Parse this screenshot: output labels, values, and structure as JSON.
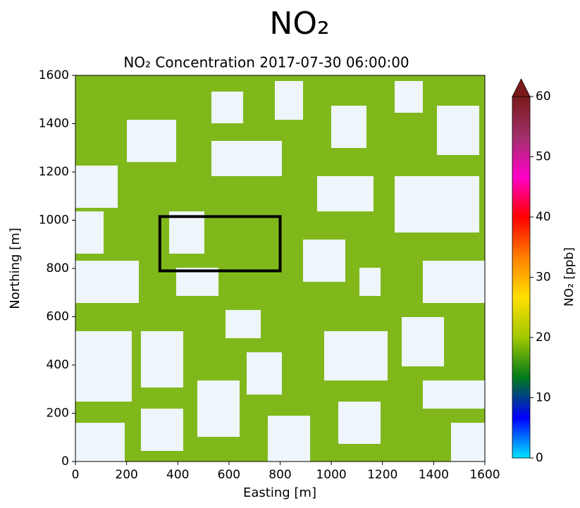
{
  "chart_data": {
    "type": "field",
    "title": "NO₂",
    "subtitle": "NO₂ Concentration   2017-07-30 06:00:00",
    "x_label": "Easting [m]",
    "y_label": "Northing [m]",
    "xlim": [
      0,
      1600
    ],
    "ylim": [
      0,
      1600
    ],
    "xticks": [
      0,
      200,
      400,
      600,
      800,
      1000,
      1200,
      1400,
      1600
    ],
    "yticks": [
      0,
      200,
      400,
      600,
      800,
      1000,
      1200,
      1400,
      1600
    ],
    "field_color": "#80b81c",
    "box": {
      "x": [
        330,
        800
      ],
      "y": [
        790,
        1015
      ],
      "color": "#000000"
    },
    "colorbar": {
      "label": "NO₂ [ppb]",
      "clim": [
        0,
        60
      ],
      "ticks": [
        0,
        10,
        20,
        30,
        40,
        50,
        60
      ],
      "colors": [
        "#00e5ff",
        "#0000ff",
        "#007a1a",
        "#a0c800",
        "#ffe000",
        "#ff8000",
        "#ff0000",
        "#ff00c8",
        "#a0306a",
        "#7a1a1a"
      ]
    }
  }
}
